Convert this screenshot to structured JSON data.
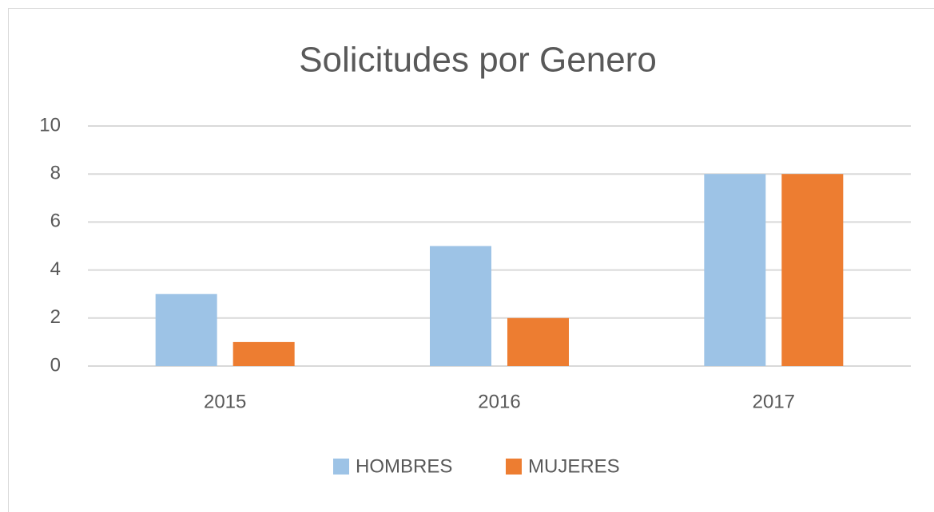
{
  "chart_data": {
    "type": "bar",
    "title": "Solicitudes por Genero",
    "categories": [
      "2015",
      "2016",
      "2017"
    ],
    "series": [
      {
        "name": "HOMBRES",
        "color": "#9dc3e6",
        "values": [
          3,
          5,
          8
        ]
      },
      {
        "name": "MUJERES",
        "color": "#ed7d31",
        "values": [
          1,
          2,
          8
        ]
      }
    ],
    "ylim": [
      0,
      10
    ],
    "yticks": [
      0,
      2,
      4,
      6,
      8,
      10
    ],
    "grid": true,
    "legend": "bottom"
  }
}
